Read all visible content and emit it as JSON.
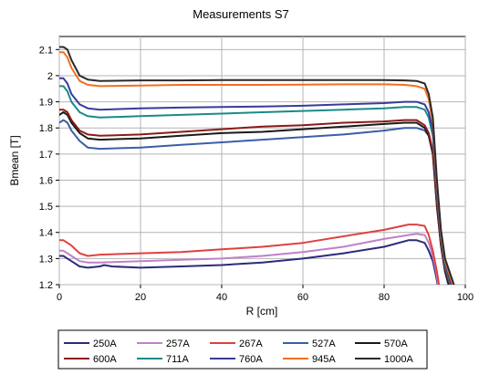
{
  "chart_data": {
    "type": "line",
    "title": "Measurements S7",
    "xlabel": "R [cm]",
    "ylabel": "Bmean [T]",
    "xlim": [
      0,
      100
    ],
    "ylim": [
      1.2,
      2.15
    ],
    "xticks": [
      "0",
      "20",
      "40",
      "60",
      "80",
      "100"
    ],
    "yticks": [
      "1.2",
      "1.3",
      "1.4",
      "1.5",
      "1.6",
      "1.7",
      "1.8",
      "1.9",
      "2",
      "2.1"
    ],
    "grid": true,
    "legend_position": "bottom",
    "series": [
      {
        "name": "250A",
        "color": "#2b2b7a",
        "x": [
          0,
          1,
          2,
          3,
          5,
          7,
          10,
          11,
          13,
          20,
          30,
          40,
          50,
          60,
          70,
          80,
          86,
          88,
          90,
          91,
          92,
          92.7,
          93.2
        ],
        "y": [
          1.31,
          1.31,
          1.3,
          1.29,
          1.27,
          1.265,
          1.27,
          1.275,
          1.27,
          1.265,
          1.27,
          1.275,
          1.285,
          1.3,
          1.32,
          1.345,
          1.37,
          1.37,
          1.36,
          1.33,
          1.29,
          1.24,
          1.2
        ]
      },
      {
        "name": "257A",
        "color": "#c080c8",
        "x": [
          0,
          1,
          2,
          3,
          5,
          7,
          10,
          20,
          30,
          40,
          50,
          60,
          70,
          80,
          86,
          88,
          90,
          91,
          92,
          92.8,
          93.3
        ],
        "y": [
          1.33,
          1.33,
          1.32,
          1.31,
          1.29,
          1.285,
          1.285,
          1.29,
          1.295,
          1.3,
          1.31,
          1.325,
          1.345,
          1.375,
          1.39,
          1.395,
          1.39,
          1.36,
          1.31,
          1.25,
          1.2
        ]
      },
      {
        "name": "267A",
        "color": "#e04040",
        "x": [
          0,
          1,
          2,
          3,
          5,
          7,
          10,
          20,
          30,
          40,
          50,
          60,
          70,
          80,
          86,
          88,
          90,
          91,
          92,
          93,
          93.5
        ],
        "y": [
          1.37,
          1.37,
          1.36,
          1.35,
          1.32,
          1.31,
          1.315,
          1.32,
          1.325,
          1.335,
          1.345,
          1.36,
          1.385,
          1.41,
          1.43,
          1.43,
          1.425,
          1.39,
          1.33,
          1.25,
          1.2
        ]
      },
      {
        "name": "527A",
        "color": "#3b5ea8",
        "x": [
          0,
          1,
          2,
          3,
          5,
          7,
          10,
          20,
          30,
          40,
          50,
          60,
          70,
          80,
          85,
          88,
          90,
          91,
          92,
          93,
          94,
          95,
          95.8
        ],
        "y": [
          1.82,
          1.83,
          1.82,
          1.79,
          1.75,
          1.725,
          1.72,
          1.725,
          1.735,
          1.745,
          1.755,
          1.765,
          1.775,
          1.79,
          1.8,
          1.8,
          1.79,
          1.77,
          1.7,
          1.5,
          1.35,
          1.25,
          1.2
        ]
      },
      {
        "name": "570A",
        "color": "#1a1a1a",
        "x": [
          0,
          1,
          2,
          3,
          5,
          7,
          10,
          20,
          30,
          40,
          50,
          60,
          70,
          80,
          85,
          88,
          90,
          91,
          92,
          93,
          94,
          95,
          96
        ],
        "y": [
          1.85,
          1.86,
          1.85,
          1.82,
          1.78,
          1.76,
          1.755,
          1.76,
          1.77,
          1.78,
          1.785,
          1.795,
          1.805,
          1.815,
          1.82,
          1.82,
          1.8,
          1.77,
          1.7,
          1.5,
          1.35,
          1.25,
          1.2
        ]
      },
      {
        "name": "600A",
        "color": "#8b1a1a",
        "x": [
          0,
          1,
          2,
          3,
          5,
          7,
          10,
          20,
          30,
          40,
          50,
          60,
          70,
          80,
          85,
          88,
          90,
          91,
          92,
          93,
          94,
          95,
          96.2
        ],
        "y": [
          1.87,
          1.87,
          1.86,
          1.83,
          1.79,
          1.775,
          1.77,
          1.775,
          1.785,
          1.795,
          1.805,
          1.81,
          1.82,
          1.825,
          1.83,
          1.83,
          1.81,
          1.78,
          1.71,
          1.52,
          1.36,
          1.26,
          1.2
        ]
      },
      {
        "name": "711A",
        "color": "#1a8a8a",
        "x": [
          0,
          1,
          2,
          3,
          5,
          7,
          10,
          20,
          30,
          40,
          50,
          60,
          70,
          80,
          85,
          88,
          90,
          91,
          92,
          93,
          94,
          95,
          96.4
        ],
        "y": [
          1.96,
          1.96,
          1.94,
          1.9,
          1.86,
          1.845,
          1.84,
          1.845,
          1.85,
          1.855,
          1.86,
          1.865,
          1.87,
          1.875,
          1.88,
          1.88,
          1.87,
          1.84,
          1.77,
          1.55,
          1.38,
          1.27,
          1.2
        ]
      },
      {
        "name": "760A",
        "color": "#3a3a9a",
        "x": [
          0,
          1,
          2,
          3,
          5,
          7,
          10,
          20,
          30,
          40,
          50,
          60,
          70,
          80,
          85,
          88,
          90,
          91,
          92,
          93,
          94,
          95,
          96.6
        ],
        "y": [
          1.99,
          1.99,
          1.97,
          1.93,
          1.89,
          1.875,
          1.87,
          1.875,
          1.878,
          1.88,
          1.882,
          1.885,
          1.89,
          1.895,
          1.9,
          1.9,
          1.89,
          1.86,
          1.79,
          1.56,
          1.39,
          1.28,
          1.2
        ]
      },
      {
        "name": "945A",
        "color": "#f07020",
        "x": [
          0,
          1,
          2,
          3,
          5,
          7,
          10,
          20,
          30,
          40,
          50,
          60,
          70,
          80,
          85,
          88,
          90,
          91,
          92,
          93,
          94,
          95,
          96.9
        ],
        "y": [
          2.09,
          2.09,
          2.07,
          2.03,
          1.98,
          1.965,
          1.96,
          1.962,
          1.965,
          1.965,
          1.965,
          1.966,
          1.967,
          1.967,
          1.965,
          1.96,
          1.95,
          1.91,
          1.82,
          1.58,
          1.4,
          1.29,
          1.2
        ]
      },
      {
        "name": "1000A",
        "color": "#2a2a2a",
        "x": [
          0,
          1,
          2,
          3,
          5,
          7,
          10,
          20,
          30,
          40,
          50,
          60,
          70,
          80,
          85,
          88,
          90,
          91,
          92,
          93,
          94,
          95,
          97.2
        ],
        "y": [
          2.11,
          2.11,
          2.1,
          2.06,
          2.0,
          1.985,
          1.98,
          1.982,
          1.982,
          1.983,
          1.983,
          1.983,
          1.983,
          1.983,
          1.982,
          1.98,
          1.97,
          1.93,
          1.84,
          1.6,
          1.41,
          1.3,
          1.2
        ]
      }
    ]
  }
}
